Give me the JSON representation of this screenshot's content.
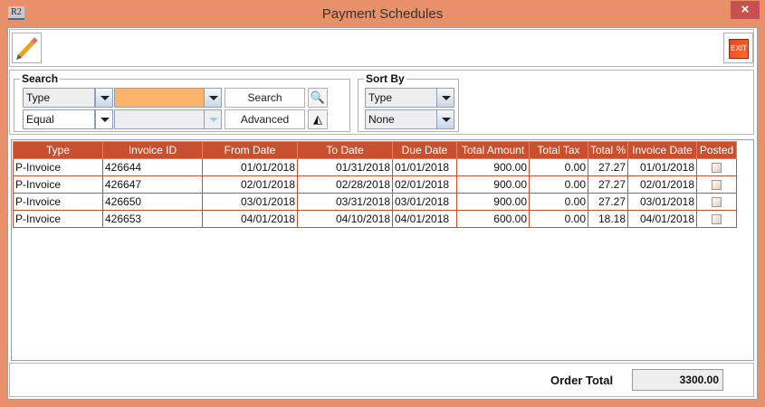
{
  "window": {
    "title": "Payment Schedules",
    "app_icon": "R2",
    "close": "×"
  },
  "toolbar": {
    "edit_icon": "pencil-icon",
    "exit_label": "EXIT"
  },
  "search": {
    "legend": "Search",
    "field_value": "Type",
    "operator_value": "Equal",
    "search_label": "Search",
    "advanced_label": "Advanced",
    "input_color": "#FBB36A"
  },
  "sort": {
    "legend": "Sort By",
    "primary": "Type",
    "secondary": "None"
  },
  "table": {
    "headers": [
      "Type",
      "Invoice ID",
      "From Date",
      "To Date",
      "Due Date",
      "Total Amount",
      "Total Tax",
      "Total %",
      "Invoice Date",
      "Posted"
    ],
    "rows": [
      {
        "type": "P-Invoice",
        "invoice_id": "426644",
        "from": "01/01/2018",
        "to": "01/31/2018",
        "due": "01/01/2018",
        "amount": "900.00",
        "tax": "0.00",
        "pct": "27.27",
        "inv_date": "01/01/2018",
        "posted": false
      },
      {
        "type": "P-Invoice",
        "invoice_id": "426647",
        "from": "02/01/2018",
        "to": "02/28/2018",
        "due": "02/01/2018",
        "amount": "900.00",
        "tax": "0.00",
        "pct": "27.27",
        "inv_date": "02/01/2018",
        "posted": false
      },
      {
        "type": "P-Invoice",
        "invoice_id": "426650",
        "from": "03/01/2018",
        "to": "03/31/2018",
        "due": "03/01/2018",
        "amount": "900.00",
        "tax": "0.00",
        "pct": "27.27",
        "inv_date": "03/01/2018",
        "posted": false
      },
      {
        "type": "P-Invoice",
        "invoice_id": "426653",
        "from": "04/01/2018",
        "to": "04/10/2018",
        "due": "04/01/2018",
        "amount": "600.00",
        "tax": "0.00",
        "pct": "18.18",
        "inv_date": "04/01/2018",
        "posted": false
      }
    ]
  },
  "footer": {
    "order_total_label": "Order Total",
    "order_total_value": "3300.00"
  },
  "colors": {
    "title_bar": "#E8906A",
    "header": "#C9502F",
    "close": "#C75050"
  }
}
